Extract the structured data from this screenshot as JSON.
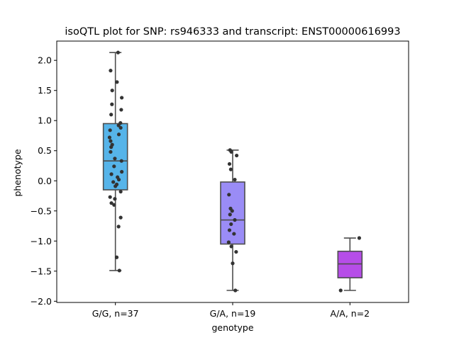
{
  "chart_data": {
    "type": "box",
    "title": "isoQTL plot for SNP: rs946333 and transcript: ENST00000616993",
    "xlabel": "genotype",
    "ylabel": "phenotype",
    "ylim": [
      -2.02,
      2.32
    ],
    "yticks": [
      -2.0,
      -1.5,
      -1.0,
      -0.5,
      0.0,
      0.5,
      1.0,
      1.5,
      2.0
    ],
    "ytick_labels": [
      "−2.0",
      "−1.5",
      "−1.0",
      "−0.5",
      "0.0",
      "0.5",
      "1.0",
      "1.5",
      "2.0"
    ],
    "categories": [
      "G/G, n=37",
      "G/A, n=19",
      "A/A, n=2"
    ],
    "colors": [
      "#56b4e9",
      "#9a8cf6",
      "#b64de8"
    ],
    "boxes": [
      {
        "category": "G/G, n=37",
        "whisker_low": -1.49,
        "q1": -0.15,
        "median": 0.33,
        "q3": 0.95,
        "whisker_high": 2.13
      },
      {
        "category": "G/A, n=19",
        "whisker_low": -1.82,
        "q1": -1.05,
        "median": -0.65,
        "q3": -0.02,
        "whisker_high": 0.51
      },
      {
        "category": "A/A, n=2",
        "whisker_low": -1.82,
        "q1": -1.61,
        "median": -1.38,
        "q3": -1.17,
        "whisker_high": -0.95
      }
    ],
    "points": [
      {
        "category": "G/G, n=37",
        "jitter": [
          0.1,
          -0.18,
          0.24,
          -0.12,
          0.22,
          0.06,
          -0.13,
          0.19,
          0.12,
          -0.16,
          -0.2,
          -0.22,
          -0.18,
          0.13,
          0.2,
          -0.12,
          -0.16,
          -0.18,
          0.23,
          -0.02,
          -0.05,
          0.24,
          -0.15,
          0.08,
          0.13,
          -0.08,
          0.05,
          0.0,
          0.2,
          -0.02,
          -0.15,
          -0.2,
          0.2,
          -0.05,
          0.12,
          0.05,
          0.15
        ],
        "values": [
          2.13,
          1.83,
          1.38,
          1.5,
          1.18,
          1.64,
          1.27,
          0.96,
          0.92,
          1.1,
          0.84,
          0.72,
          0.66,
          0.77,
          0.88,
          0.6,
          0.56,
          0.48,
          0.33,
          0.37,
          0.24,
          0.15,
          0.11,
          0.06,
          0.02,
          -0.02,
          -0.06,
          -0.09,
          -0.18,
          -0.3,
          -0.37,
          -0.27,
          -0.61,
          -0.4,
          -0.76,
          -1.27,
          -1.49
        ]
      },
      {
        "category": "G/A, n=19",
        "jitter": [
          -0.1,
          -0.05,
          0.15,
          -0.12,
          -0.14,
          -0.08,
          -0.02,
          -0.1,
          0.08,
          -0.06,
          -0.12,
          -0.15,
          0.05,
          0.13,
          0.0,
          -0.05,
          0.1,
          -0.07,
          0.08
        ],
        "values": [
          0.51,
          0.48,
          0.42,
          0.28,
          -0.23,
          -0.46,
          -0.5,
          -0.56,
          -0.65,
          -0.72,
          -0.82,
          -1.02,
          -0.88,
          -1.18,
          -1.37,
          -1.09,
          -1.82,
          0.19,
          0.02
        ]
      },
      {
        "category": "A/A, n=2",
        "jitter": [
          0.35,
          -0.35
        ],
        "values": [
          -0.95,
          -1.82
        ]
      }
    ]
  }
}
